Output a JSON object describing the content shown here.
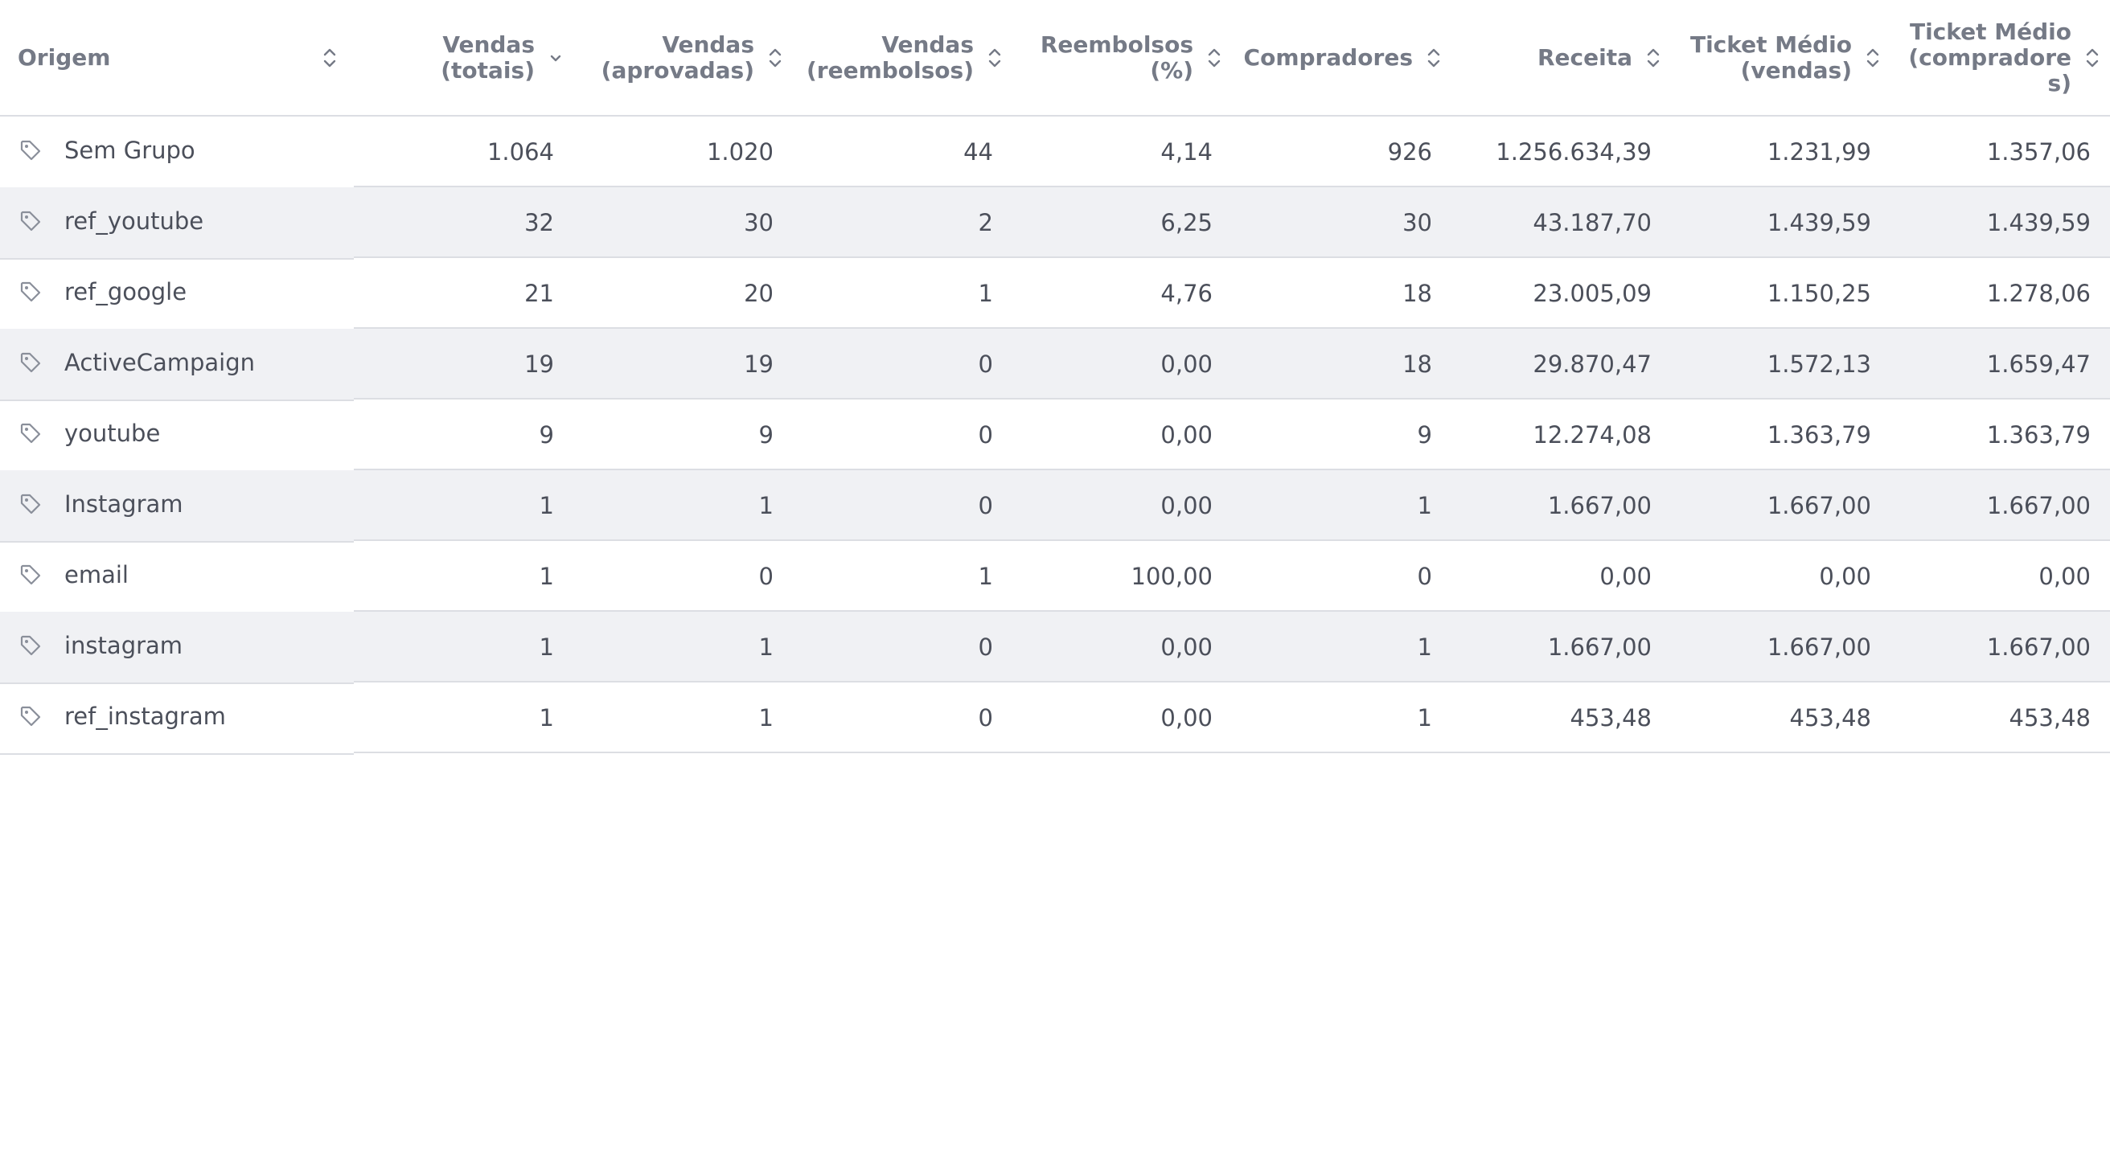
{
  "table": {
    "columns": [
      {
        "key": "origem",
        "label": "Origem",
        "sort": "both"
      },
      {
        "key": "vendas_totais",
        "label": "Vendas\n(totais)",
        "sort": "desc"
      },
      {
        "key": "vendas_aprovadas",
        "label": "Vendas\n(aprovadas)",
        "sort": "both"
      },
      {
        "key": "vendas_reembolsos",
        "label": "Vendas\n(reembolsos)",
        "sort": "both"
      },
      {
        "key": "reembolsos_pct",
        "label": "Reembolsos\n(%)",
        "sort": "both"
      },
      {
        "key": "compradores",
        "label": "Compradores",
        "sort": "both"
      },
      {
        "key": "receita",
        "label": "Receita",
        "sort": "both"
      },
      {
        "key": "ticket_vendas",
        "label": "Ticket Médio\n(vendas)",
        "sort": "both"
      },
      {
        "key": "ticket_compradores",
        "label": "Ticket Médio\n(compradore\ns)",
        "sort": "both"
      }
    ],
    "rows": [
      {
        "origem": "Sem Grupo",
        "vendas_totais": "1.064",
        "vendas_aprovadas": "1.020",
        "vendas_reembolsos": "44",
        "reembolsos_pct": "4,14",
        "compradores": "926",
        "receita": "1.256.634,39",
        "ticket_vendas": "1.231,99",
        "ticket_compradores": "1.357,06"
      },
      {
        "origem": "ref_youtube",
        "vendas_totais": "32",
        "vendas_aprovadas": "30",
        "vendas_reembolsos": "2",
        "reembolsos_pct": "6,25",
        "compradores": "30",
        "receita": "43.187,70",
        "ticket_vendas": "1.439,59",
        "ticket_compradores": "1.439,59"
      },
      {
        "origem": "ref_google",
        "vendas_totais": "21",
        "vendas_aprovadas": "20",
        "vendas_reembolsos": "1",
        "reembolsos_pct": "4,76",
        "compradores": "18",
        "receita": "23.005,09",
        "ticket_vendas": "1.150,25",
        "ticket_compradores": "1.278,06"
      },
      {
        "origem": "ActiveCampaign",
        "vendas_totais": "19",
        "vendas_aprovadas": "19",
        "vendas_reembolsos": "0",
        "reembolsos_pct": "0,00",
        "compradores": "18",
        "receita": "29.870,47",
        "ticket_vendas": "1.572,13",
        "ticket_compradores": "1.659,47"
      },
      {
        "origem": "youtube",
        "vendas_totais": "9",
        "vendas_aprovadas": "9",
        "vendas_reembolsos": "0",
        "reembolsos_pct": "0,00",
        "compradores": "9",
        "receita": "12.274,08",
        "ticket_vendas": "1.363,79",
        "ticket_compradores": "1.363,79"
      },
      {
        "origem": "Instagram",
        "vendas_totais": "1",
        "vendas_aprovadas": "1",
        "vendas_reembolsos": "0",
        "reembolsos_pct": "0,00",
        "compradores": "1",
        "receita": "1.667,00",
        "ticket_vendas": "1.667,00",
        "ticket_compradores": "1.667,00"
      },
      {
        "origem": "email",
        "vendas_totais": "1",
        "vendas_aprovadas": "0",
        "vendas_reembolsos": "1",
        "reembolsos_pct": "100,00",
        "compradores": "0",
        "receita": "0,00",
        "ticket_vendas": "0,00",
        "ticket_compradores": "0,00"
      },
      {
        "origem": "instagram",
        "vendas_totais": "1",
        "vendas_aprovadas": "1",
        "vendas_reembolsos": "0",
        "reembolsos_pct": "0,00",
        "compradores": "1",
        "receita": "1.667,00",
        "ticket_vendas": "1.667,00",
        "ticket_compradores": "1.667,00"
      },
      {
        "origem": "ref_instagram",
        "vendas_totais": "1",
        "vendas_aprovadas": "1",
        "vendas_reembolsos": "0",
        "reembolsos_pct": "0,00",
        "compradores": "1",
        "receita": "453,48",
        "ticket_vendas": "453,48",
        "ticket_compradores": "453,48"
      }
    ]
  },
  "icons": {
    "row_icon": "tag-icon",
    "sort_both": "sort-up-down-icon",
    "sort_desc": "chevron-down-icon"
  },
  "colors": {
    "header_text": "#757a86",
    "body_text": "#4b4f5a",
    "row_alt_bg": "#f0f1f4",
    "divider": "#dcdee3"
  }
}
